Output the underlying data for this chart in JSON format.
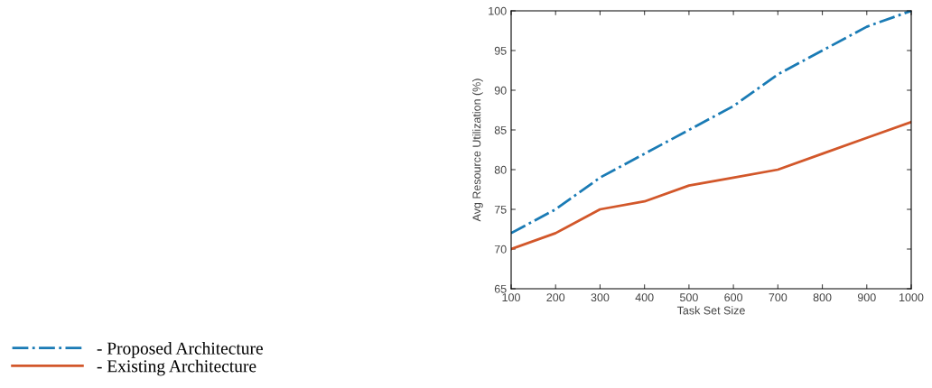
{
  "chart_data": {
    "type": "line",
    "xlabel": "Task Set Size",
    "ylabel": "Avg Resource Utilization (%)",
    "x": [
      100,
      200,
      300,
      400,
      500,
      600,
      700,
      800,
      900,
      1000
    ],
    "series": [
      {
        "name": "- Proposed Architecture",
        "color": "#1a7bb5",
        "line_style": "dashed",
        "values": [
          72,
          75,
          79,
          82,
          85,
          88,
          92,
          95,
          98,
          100
        ]
      },
      {
        "name": "- Existing Architecture",
        "color": "#d2572a",
        "line_style": "solid",
        "values": [
          70,
          72,
          75,
          76,
          78,
          79,
          80,
          82,
          84,
          86
        ]
      }
    ],
    "xlim": [
      100,
      1000
    ],
    "xticks": [
      100,
      200,
      300,
      400,
      500,
      600,
      700,
      800,
      900,
      1000
    ],
    "ylim": [
      65,
      100
    ],
    "yticks": [
      65,
      70,
      75,
      80,
      85,
      90,
      95,
      100
    ],
    "grid": false,
    "legend": "bottom left",
    "marker": "none"
  }
}
